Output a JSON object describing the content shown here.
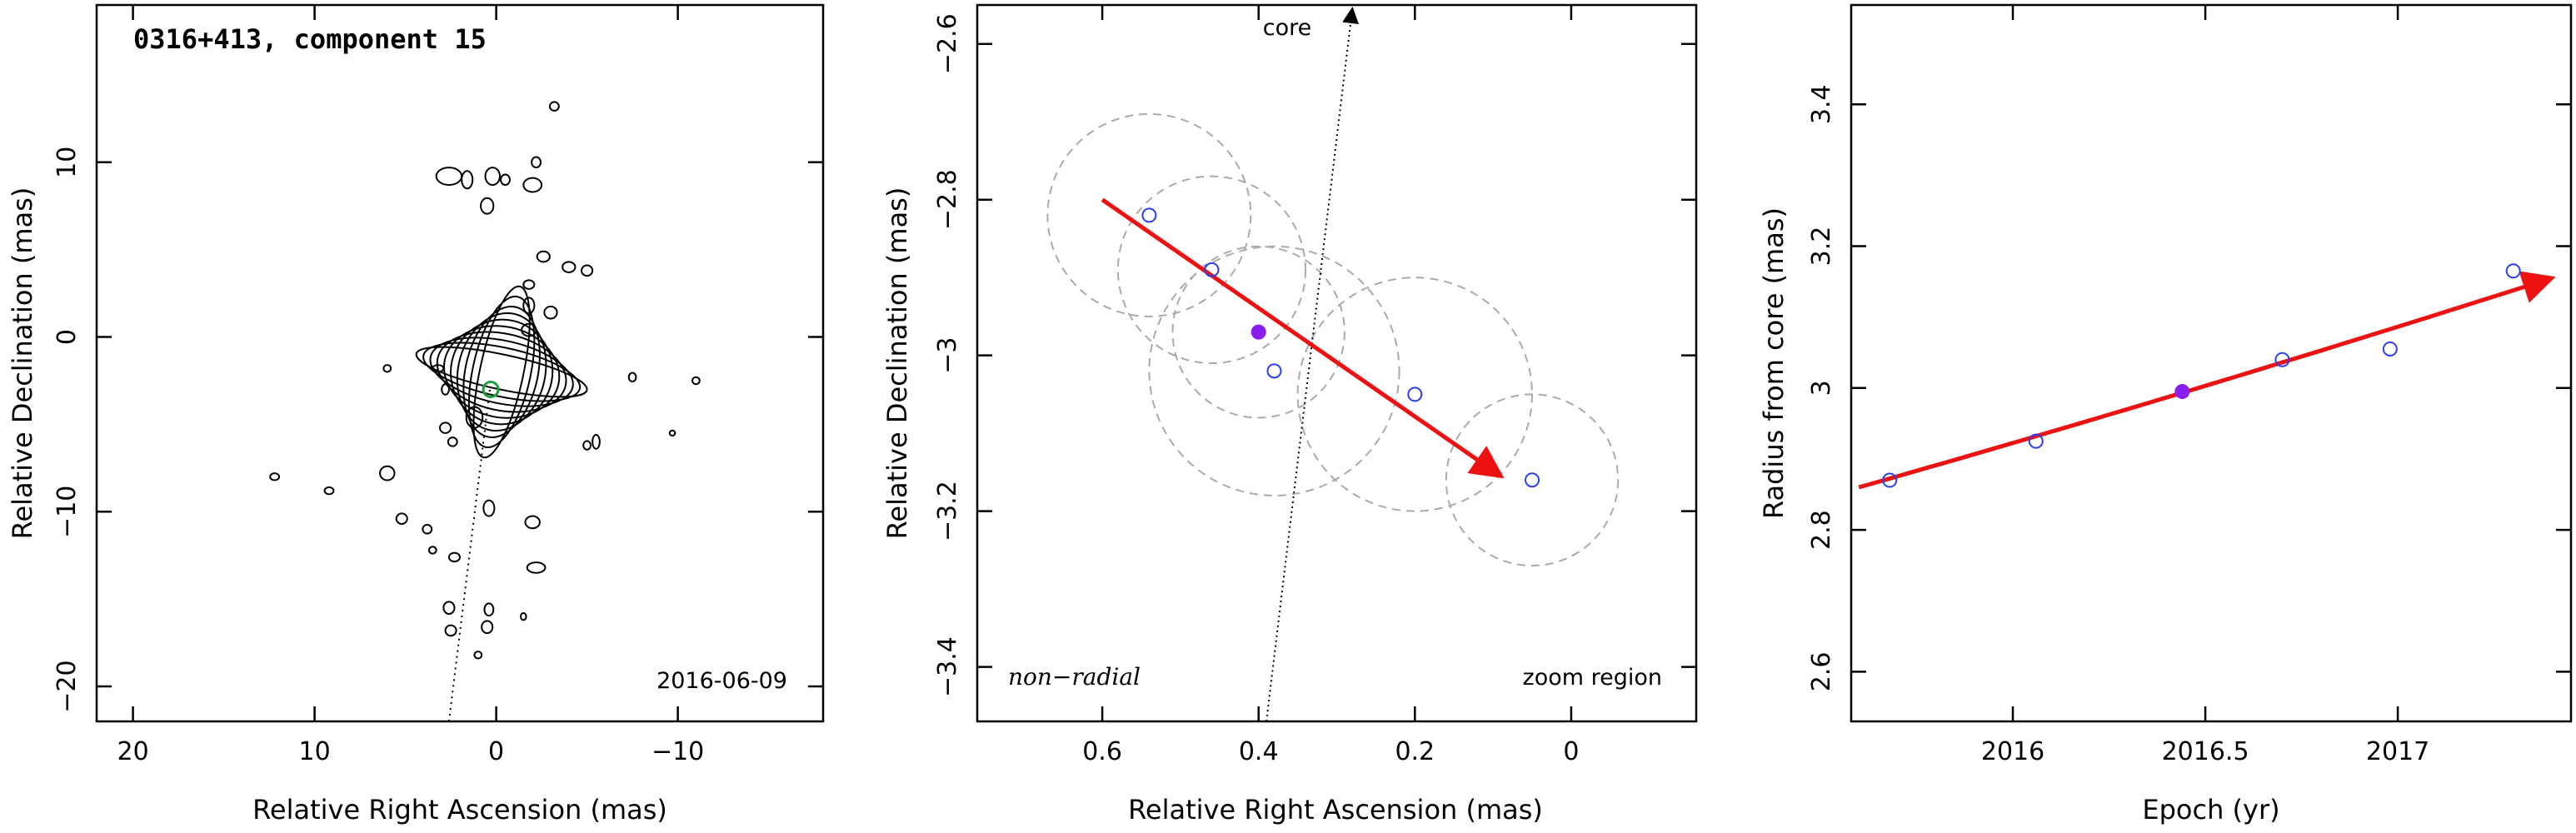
{
  "chart_data": [
    {
      "type": "contour-map",
      "title": "0316+413, component 15",
      "date_label": "2016-06-09",
      "xlabel": "Relative Right Ascension (mas)",
      "ylabel": "Relative Declination (mas)",
      "xlim": [
        22,
        -18
      ],
      "ylim": [
        -22,
        19
      ],
      "xticks": [
        20,
        10,
        0,
        -10
      ],
      "yticks": [
        -20,
        -10,
        0,
        10
      ],
      "xtick_labels": [
        "20",
        "10",
        "0",
        "−10"
      ],
      "ytick_labels": [
        "−20",
        "−10",
        "0",
        "10"
      ],
      "component_marker": {
        "x": 0.3,
        "y": -3.0,
        "color": "#1f9e3a"
      },
      "core_direction_line": {
        "from": [
          2.6,
          -22
        ],
        "to": [
          0.35,
          -3.0
        ]
      },
      "core_blob": {
        "x": -0.3,
        "y": -2.0,
        "levels": [
          [
            1.2,
            5.0
          ],
          [
            1.6,
            4.4
          ],
          [
            2.0,
            3.8
          ],
          [
            2.4,
            3.4
          ],
          [
            2.8,
            3.0
          ],
          [
            3.2,
            2.6
          ],
          [
            3.6,
            2.2
          ],
          [
            4.0,
            1.8
          ],
          [
            4.4,
            1.4
          ],
          [
            4.8,
            1.0
          ]
        ]
      },
      "islands": [
        {
          "x": 2.6,
          "y": 9.2,
          "rx": 0.7,
          "ry": 0.5
        },
        {
          "x": 1.6,
          "y": 9.0,
          "rx": 0.3,
          "ry": 0.5
        },
        {
          "x": 0.2,
          "y": 9.2,
          "rx": 0.4,
          "ry": 0.5
        },
        {
          "x": -0.5,
          "y": 9.0,
          "rx": 0.25,
          "ry": 0.3
        },
        {
          "x": -2.0,
          "y": 8.7,
          "rx": 0.5,
          "ry": 0.4
        },
        {
          "x": -2.2,
          "y": 10.0,
          "rx": 0.25,
          "ry": 0.3
        },
        {
          "x": 0.5,
          "y": 7.5,
          "rx": 0.35,
          "ry": 0.45
        },
        {
          "x": -3.2,
          "y": 13.2,
          "rx": 0.25,
          "ry": 0.25
        },
        {
          "x": -2.6,
          "y": 4.6,
          "rx": 0.35,
          "ry": 0.3
        },
        {
          "x": -4.0,
          "y": 4.0,
          "rx": 0.35,
          "ry": 0.3
        },
        {
          "x": -5.0,
          "y": 3.8,
          "rx": 0.3,
          "ry": 0.3
        },
        {
          "x": -1.8,
          "y": 3.0,
          "rx": 0.3,
          "ry": 0.25
        },
        {
          "x": -1.8,
          "y": 1.8,
          "rx": 0.3,
          "ry": 0.45
        },
        {
          "x": -3.0,
          "y": 1.4,
          "rx": 0.35,
          "ry": 0.35
        },
        {
          "x": -1.8,
          "y": 0.4,
          "rx": 0.4,
          "ry": 0.35
        },
        {
          "x": 1.2,
          "y": -4.6,
          "rx": 0.45,
          "ry": 0.6
        },
        {
          "x": 2.8,
          "y": -5.2,
          "rx": 0.3,
          "ry": 0.3
        },
        {
          "x": 6.0,
          "y": -7.8,
          "rx": 0.4,
          "ry": 0.4
        },
        {
          "x": 5.2,
          "y": -10.4,
          "rx": 0.3,
          "ry": 0.3
        },
        {
          "x": 0.4,
          "y": -9.8,
          "rx": 0.3,
          "ry": 0.45
        },
        {
          "x": -2.0,
          "y": -10.6,
          "rx": 0.4,
          "ry": 0.35
        },
        {
          "x": -2.2,
          "y": -13.2,
          "rx": 0.5,
          "ry": 0.3
        },
        {
          "x": 2.3,
          "y": -12.6,
          "rx": 0.3,
          "ry": 0.25
        },
        {
          "x": 2.6,
          "y": -15.5,
          "rx": 0.3,
          "ry": 0.35
        },
        {
          "x": 0.4,
          "y": -15.6,
          "rx": 0.25,
          "ry": 0.35
        },
        {
          "x": 0.5,
          "y": -16.6,
          "rx": 0.3,
          "ry": 0.35
        },
        {
          "x": 2.5,
          "y": -16.8,
          "rx": 0.3,
          "ry": 0.3
        },
        {
          "x": 1.0,
          "y": -18.2,
          "rx": 0.2,
          "ry": 0.2
        },
        {
          "x": -5.5,
          "y": -6.0,
          "rx": 0.2,
          "ry": 0.4
        },
        {
          "x": -7.5,
          "y": -2.3,
          "rx": 0.2,
          "ry": 0.25
        },
        {
          "x": 6.0,
          "y": -1.8,
          "rx": 0.2,
          "ry": 0.2
        },
        {
          "x": 3.2,
          "y": -1.8,
          "rx": 0.3,
          "ry": 0.2
        },
        {
          "x": 2.8,
          "y": -3.0,
          "rx": 0.2,
          "ry": 0.3
        },
        {
          "x": -5.0,
          "y": -6.2,
          "rx": 0.2,
          "ry": 0.25
        },
        {
          "x": 12.2,
          "y": -8.0,
          "rx": 0.25,
          "ry": 0.2
        },
        {
          "x": 9.2,
          "y": -8.8,
          "rx": 0.25,
          "ry": 0.2
        },
        {
          "x": -11.0,
          "y": -2.5,
          "rx": 0.2,
          "ry": 0.2
        },
        {
          "x": -9.7,
          "y": -5.5,
          "rx": 0.15,
          "ry": 0.15
        },
        {
          "x": 2.4,
          "y": -6.0,
          "rx": 0.25,
          "ry": 0.25
        },
        {
          "x": 3.8,
          "y": -11.0,
          "rx": 0.25,
          "ry": 0.25
        },
        {
          "x": 3.5,
          "y": -12.2,
          "rx": 0.2,
          "ry": 0.2
        },
        {
          "x": -1.5,
          "y": -16.0,
          "rx": 0.15,
          "ry": 0.2
        }
      ]
    },
    {
      "type": "scatter",
      "xlabel": "Relative Right Ascension (mas)",
      "ylabel": "Relative Declination (mas)",
      "xlim": [
        0.76,
        -0.16
      ],
      "ylim": [
        -3.47,
        -2.55
      ],
      "xticks": [
        0.6,
        0.4,
        0.2,
        0
      ],
      "yticks": [
        -3.4,
        -3.2,
        -3,
        -2.8,
        -2.6
      ],
      "xtick_labels": [
        "0.6",
        "0.4",
        "0.2",
        "0"
      ],
      "ytick_labels": [
        "−3.4",
        "−3.2",
        "−3",
        "−2.8",
        "−2.6"
      ],
      "core_label": "core",
      "motion_label": "non−radial",
      "zoom_label": "zoom region",
      "core_direction_line": {
        "from": [
          0.39,
          -3.47
        ],
        "to": [
          0.28,
          -2.55
        ]
      },
      "points": [
        {
          "x": 0.54,
          "y": -2.82,
          "filled": false,
          "r": 0.13
        },
        {
          "x": 0.46,
          "y": -2.89,
          "filled": false,
          "r": 0.12
        },
        {
          "x": 0.4,
          "y": -2.97,
          "filled": true,
          "r": 0.11
        },
        {
          "x": 0.38,
          "y": -3.02,
          "filled": false,
          "r": 0.16
        },
        {
          "x": 0.2,
          "y": -3.05,
          "filled": false,
          "r": 0.15
        },
        {
          "x": 0.05,
          "y": -3.16,
          "filled": false,
          "r": 0.11
        }
      ],
      "fit_arrow": {
        "from": [
          0.6,
          -2.8
        ],
        "to": [
          0.09,
          -3.155
        ]
      }
    },
    {
      "type": "scatter",
      "xlabel": "Epoch (yr)",
      "ylabel": "Radius from core (mas)",
      "xlim": [
        15.58,
        17.45
      ],
      "ylim": [
        2.53,
        3.54
      ],
      "xticks": [
        16,
        16.5,
        17
      ],
      "yticks": [
        2.6,
        2.8,
        3,
        3.2,
        3.4
      ],
      "xtick_labels": [
        "2016",
        "2016.5",
        "2017"
      ],
      "ytick_labels": [
        "2.6",
        "2.8",
        "3",
        "3.2",
        "3.4"
      ],
      "points": [
        {
          "x": 15.68,
          "y": 2.87,
          "filled": false
        },
        {
          "x": 16.06,
          "y": 2.925,
          "filled": false
        },
        {
          "x": 16.44,
          "y": 2.995,
          "filled": true
        },
        {
          "x": 16.7,
          "y": 3.04,
          "filled": false
        },
        {
          "x": 16.98,
          "y": 3.055,
          "filled": false
        },
        {
          "x": 17.3,
          "y": 3.165,
          "filled": false
        }
      ],
      "fit_curve": {
        "x0": 15.6,
        "x1": 17.4,
        "y_at_x0": 2.86,
        "y_at_x1": 3.155,
        "curvature": 0.06
      }
    }
  ]
}
